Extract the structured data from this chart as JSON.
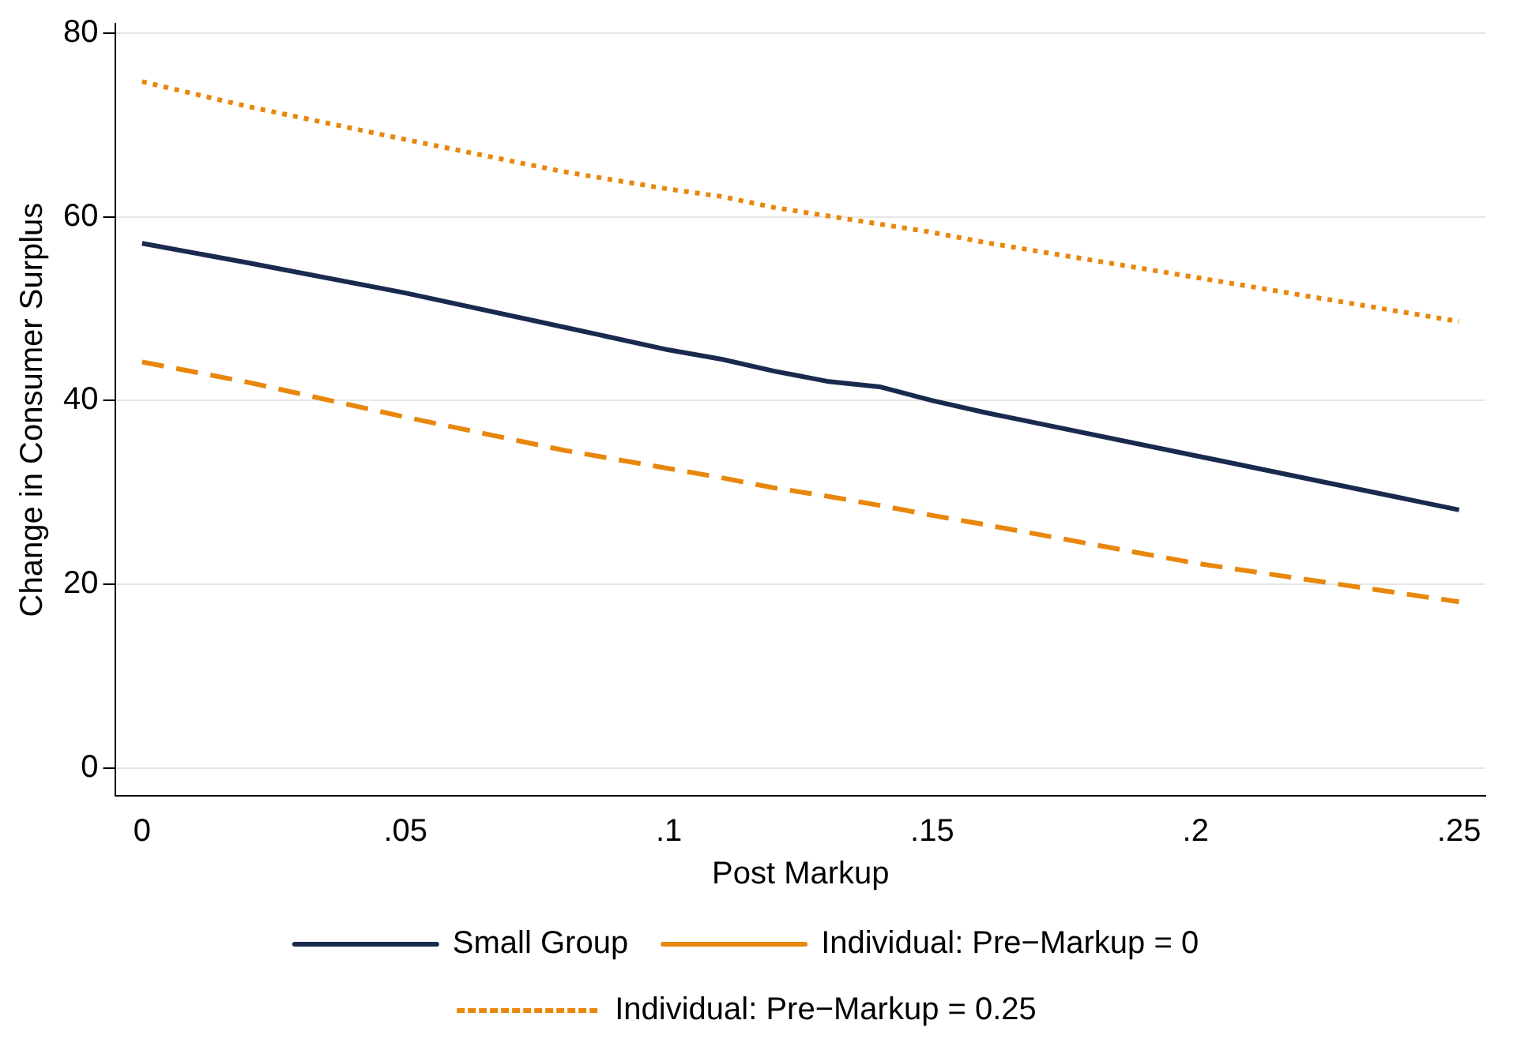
{
  "chart_data": {
    "type": "line",
    "xlabel": "Post Markup",
    "ylabel": "Change in Consumer Surplus",
    "x": [
      0,
      0.02,
      0.05,
      0.08,
      0.1,
      0.11,
      0.12,
      0.13,
      0.14,
      0.15,
      0.16,
      0.2,
      0.25
    ],
    "series": [
      {
        "name": "Small Group",
        "color": "#1a2a4f",
        "line_style": "solid",
        "values": [
          57.1,
          55.0,
          51.7,
          48.0,
          45.5,
          44.5,
          43.2,
          42.1,
          41.5,
          40.0,
          38.7,
          34.0,
          28.1
        ]
      },
      {
        "name": "Individual: Pre−Markup = 0",
        "color": "#e8870c",
        "line_style": "dashed",
        "values": [
          44.2,
          42.0,
          38.2,
          34.6,
          32.6,
          31.6,
          30.5,
          29.6,
          28.6,
          27.5,
          26.5,
          22.3,
          18.1
        ]
      },
      {
        "name": "Individual: Pre−Markup = 0.25",
        "color": "#e8870c",
        "line_style": "dotted",
        "values": [
          74.7,
          72.0,
          68.4,
          64.9,
          63.0,
          62.2,
          61.0,
          60.1,
          59.2,
          58.3,
          57.2,
          53.4,
          48.6
        ]
      }
    ],
    "xlim": [
      -0.005,
      0.255
    ],
    "xticks": [
      {
        "value": 0,
        "label": "0"
      },
      {
        "value": 0.05,
        "label": ".05"
      },
      {
        "value": 0.1,
        "label": ".1"
      },
      {
        "value": 0.15,
        "label": ".15"
      },
      {
        "value": 0.2,
        "label": ".2"
      },
      {
        "value": 0.25,
        "label": ".25"
      }
    ],
    "ylim": [
      -3,
      81
    ],
    "yticks": [
      0,
      20,
      40,
      60,
      80
    ],
    "grid": "y",
    "legend": "bottom",
    "marker": "none"
  }
}
